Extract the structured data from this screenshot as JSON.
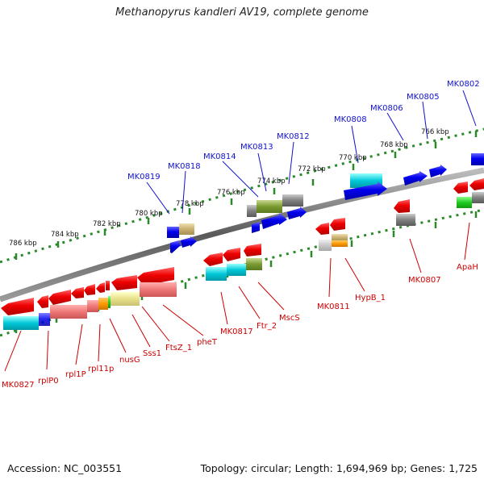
{
  "title": "Methanopyrus kandleri AV19, complete genome",
  "footer": {
    "accession": "Accession: NC_003551",
    "topology": "Topology: circular; Length: 1,694,969 bp; Genes: 1,725"
  },
  "ruler_labels": [
    "786 kbp",
    "784 kbp",
    "782 kbp",
    "780 kbp",
    "778 kbp",
    "776 kbp",
    "774 kbp",
    "772 kbp",
    "770 kbp",
    "768 kbp",
    "766 kbp"
  ],
  "top_labels": [
    "MK0819",
    "MK0818",
    "MK0814",
    "MK0813",
    "MK0812",
    "MK0808",
    "MK0806",
    "MK0805",
    "MK0802"
  ],
  "bottom_labels": [
    "MK0827",
    "rplP0",
    "rpl1P",
    "rpl11p",
    "nusG",
    "Sss1",
    "FtsZ_1",
    "pheT",
    "MK0817",
    "Ftr_2",
    "MscS",
    "MK0811",
    "HypB_1",
    "MK0807",
    "ApaH"
  ],
  "colors": {
    "backbone": "#777777",
    "forward_gene": "#1010ee",
    "reverse_gene": "#ee1111",
    "ruler": "#2a8a2a",
    "label_top": "#1111cc",
    "label_bottom": "#cc0000"
  }
}
